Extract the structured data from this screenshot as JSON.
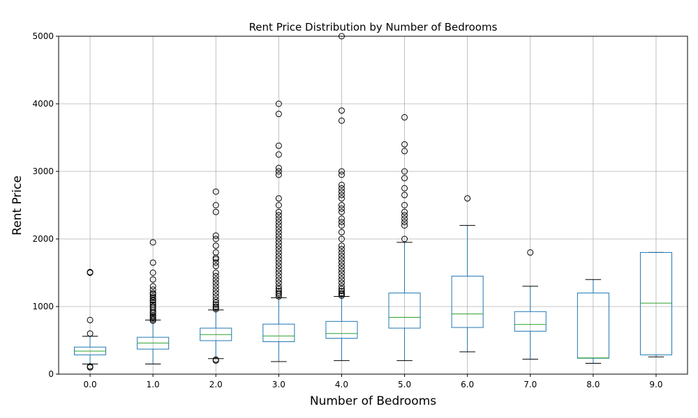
{
  "chart_data": {
    "type": "box",
    "title": "Rent Price Distribution by Number of Bedrooms",
    "xlabel": "Number of Bedrooms",
    "ylabel": "Rent Price",
    "ylim": [
      0,
      5000
    ],
    "yticks": [
      0,
      1000,
      2000,
      3000,
      4000,
      5000
    ],
    "grid": true,
    "colors": {
      "box": "#1f77b4",
      "median": "#2ca02c",
      "grid": "#b0b0b0",
      "flier": "#000000"
    },
    "categories": [
      "0.0",
      "1.0",
      "2.0",
      "3.0",
      "4.0",
      "5.0",
      "6.0",
      "7.0",
      "8.0",
      "9.0"
    ],
    "boxes": [
      {
        "category": "0.0",
        "whisker_low": 150,
        "q1": 285,
        "median": 340,
        "q3": 400,
        "whisker_high": 560,
        "fliers": [
          100,
          115,
          600,
          800,
          1500,
          1510
        ]
      },
      {
        "category": "1.0",
        "whisker_low": 150,
        "q1": 370,
        "median": 460,
        "q3": 545,
        "whisker_high": 800,
        "fliers": [
          790,
          810,
          830,
          850,
          870,
          900,
          920,
          950,
          980,
          1000,
          1030,
          1060,
          1090,
          1100,
          1130,
          1150,
          1180,
          1200,
          1250,
          1300,
          1400,
          1500,
          1650,
          1950
        ]
      },
      {
        "category": "2.0",
        "whisker_low": 230,
        "q1": 495,
        "median": 585,
        "q3": 680,
        "whisker_high": 950,
        "fliers": [
          200,
          215,
          960,
          980,
          1000,
          1030,
          1060,
          1100,
          1150,
          1200,
          1250,
          1300,
          1350,
          1400,
          1450,
          1500,
          1600,
          1650,
          1700,
          1720,
          1800,
          1900,
          2000,
          2050,
          2400,
          2500,
          2700
        ]
      },
      {
        "category": "3.0",
        "whisker_low": 185,
        "q1": 480,
        "median": 565,
        "q3": 740,
        "whisker_high": 1130,
        "fliers": [
          1150,
          1180,
          1200,
          1230,
          1260,
          1300,
          1350,
          1400,
          1450,
          1500,
          1550,
          1600,
          1650,
          1700,
          1750,
          1800,
          1850,
          1900,
          1950,
          2000,
          2050,
          2100,
          2150,
          2200,
          2250,
          2300,
          2350,
          2400,
          2500,
          2600,
          2950,
          3000,
          3050,
          3250,
          3380,
          3850,
          4000
        ]
      },
      {
        "category": "4.0",
        "whisker_low": 200,
        "q1": 530,
        "median": 600,
        "q3": 780,
        "whisker_high": 1150,
        "fliers": [
          1160,
          1180,
          1200,
          1230,
          1260,
          1300,
          1350,
          1400,
          1450,
          1500,
          1550,
          1600,
          1650,
          1700,
          1750,
          1800,
          1850,
          1900,
          2000,
          2100,
          2200,
          2250,
          2300,
          2400,
          2450,
          2500,
          2600,
          2650,
          2700,
          2750,
          2800,
          2950,
          3000,
          3750,
          3900,
          5000
        ]
      },
      {
        "category": "5.0",
        "whisker_low": 200,
        "q1": 680,
        "median": 840,
        "q3": 1200,
        "whisker_high": 1950,
        "fliers": [
          2000,
          2200,
          2250,
          2300,
          2350,
          2400,
          2500,
          2650,
          2750,
          2900,
          3000,
          3300,
          3400,
          3800
        ]
      },
      {
        "category": "6.0",
        "whisker_low": 330,
        "q1": 690,
        "median": 890,
        "q3": 1450,
        "whisker_high": 2200,
        "fliers": [
          2600
        ]
      },
      {
        "category": "7.0",
        "whisker_low": 220,
        "q1": 635,
        "median": 735,
        "q3": 925,
        "whisker_high": 1300,
        "fliers": [
          1800
        ]
      },
      {
        "category": "8.0",
        "whisker_low": 160,
        "q1": 235,
        "median": 240,
        "q3": 1200,
        "whisker_high": 1400,
        "fliers": []
      },
      {
        "category": "9.0",
        "whisker_low": 255,
        "q1": 285,
        "median": 1050,
        "q3": 1800,
        "whisker_high": 1800,
        "fliers": []
      }
    ]
  }
}
